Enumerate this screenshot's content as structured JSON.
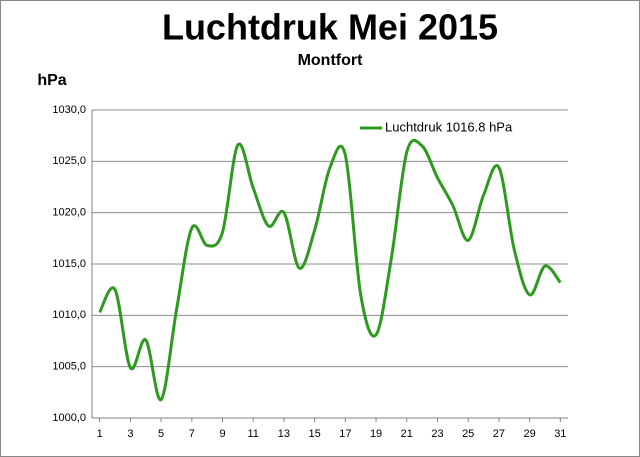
{
  "chart_data": {
    "type": "line",
    "title": "Luchtdruk Mei 2015",
    "subtitle": "Montfort",
    "y_label": "hPa",
    "x": [
      1,
      2,
      3,
      4,
      5,
      6,
      7,
      8,
      9,
      10,
      11,
      12,
      13,
      14,
      15,
      16,
      17,
      18,
      19,
      20,
      21,
      22,
      23,
      24,
      25,
      26,
      27,
      28,
      29,
      30,
      31
    ],
    "xlim": [
      0.5,
      31.5
    ],
    "xticks": [
      1,
      3,
      5,
      7,
      9,
      11,
      13,
      15,
      17,
      19,
      21,
      23,
      25,
      27,
      29,
      31
    ],
    "ylim": [
      1000,
      1030
    ],
    "yticks": [
      {
        "value": 1000,
        "label": "1000,0"
      },
      {
        "value": 1005,
        "label": "1005,0"
      },
      {
        "value": 1010,
        "label": "1010,0"
      },
      {
        "value": 1015,
        "label": "1015,0"
      },
      {
        "value": 1020,
        "label": "1020,0"
      },
      {
        "value": 1025,
        "label": "1025,0"
      },
      {
        "value": 1030,
        "label": "1030,0"
      }
    ],
    "grid": true,
    "legend": "upper right",
    "smooth": true,
    "series": [
      {
        "name": "Luchtdruk 1016.8 hPa",
        "color": "#2e9a1f",
        "values": [
          1010.3,
          1012.5,
          1004.9,
          1007.6,
          1001.8,
          1010.5,
          1018.5,
          1016.8,
          1018.1,
          1026.6,
          1022.4,
          1018.7,
          1020.0,
          1014.6,
          1018.3,
          1024.4,
          1025.6,
          1012.0,
          1008.1,
          1015.6,
          1025.9,
          1026.5,
          1023.4,
          1020.7,
          1017.3,
          1021.7,
          1024.4,
          1016.4,
          1012.0,
          1014.8,
          1013.2
        ]
      }
    ]
  }
}
